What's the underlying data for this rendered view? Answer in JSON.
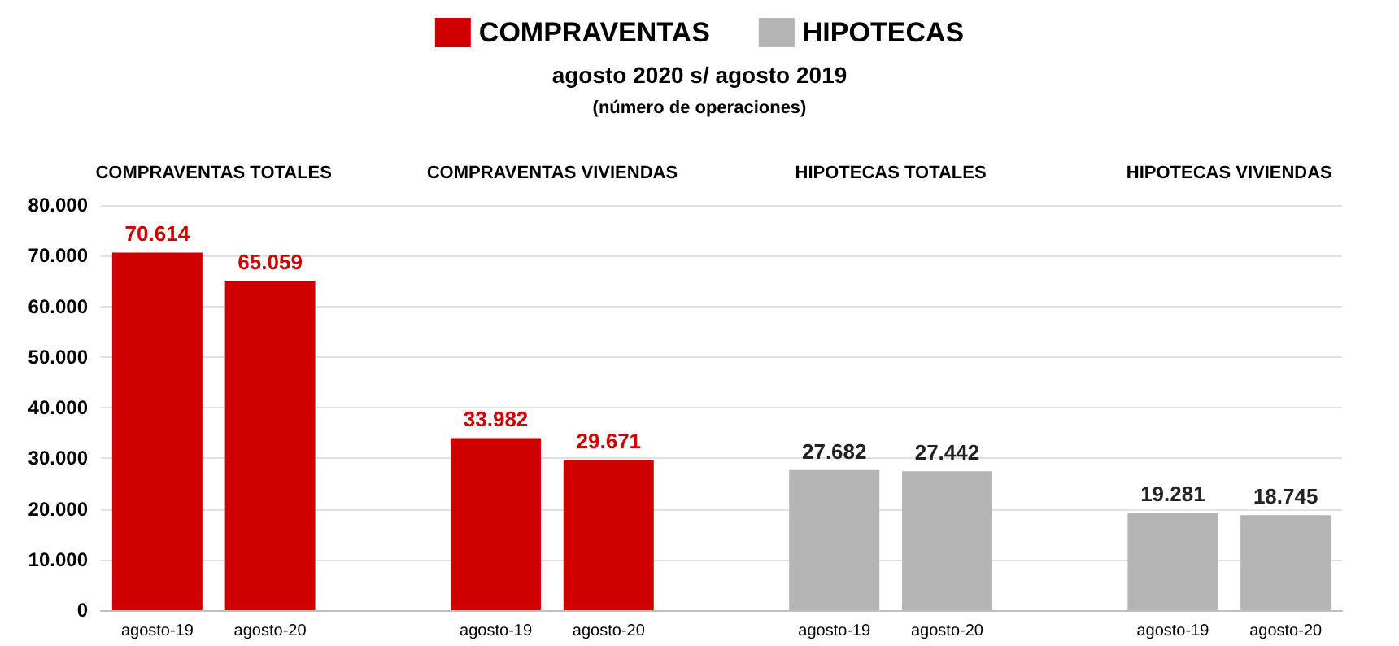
{
  "chart_data": {
    "type": "bar",
    "title": "agosto 2020 s/ agosto 2019",
    "subtitle": "(número de operaciones)",
    "categories": [
      "agosto-19",
      "agosto-20",
      null,
      "agosto-19",
      "agosto-20",
      null,
      "agosto-19",
      "agosto-20",
      null,
      "agosto-19",
      "agosto-20"
    ],
    "series": [
      {
        "name": "COMPRAVENTAS",
        "color": "#d00000",
        "values": [
          70614,
          65059,
          null,
          33982,
          29671,
          null,
          null,
          null,
          null,
          null,
          null
        ],
        "value_labels": [
          "70.614",
          "65.059",
          null,
          "33.982",
          "29.671",
          null,
          null,
          null,
          null,
          null,
          null
        ]
      },
      {
        "name": "HIPOTECAS",
        "color": "#b4b4b4",
        "values": [
          null,
          null,
          null,
          null,
          null,
          null,
          27682,
          27442,
          null,
          19281,
          18745
        ],
        "value_labels": [
          null,
          null,
          null,
          null,
          null,
          null,
          "27.682",
          "27.442",
          null,
          "19.281",
          "18.745"
        ]
      }
    ],
    "annotations": [
      "COMPRAVENTAS TOTALES",
      "COMPRAVENTAS VIVIENDAS",
      "HIPOTECAS TOTALES",
      "HIPOTECAS VIVIENDAS"
    ],
    "ylim": [
      0,
      80000
    ],
    "yticks": [
      {
        "value": 0,
        "label": "0"
      },
      {
        "value": 10000,
        "label": "10.000"
      },
      {
        "value": 20000,
        "label": "20.000"
      },
      {
        "value": 30000,
        "label": "30.000"
      },
      {
        "value": 40000,
        "label": "40.000"
      },
      {
        "value": 50000,
        "label": "50.000"
      },
      {
        "value": 60000,
        "label": "60.000"
      },
      {
        "value": 70000,
        "label": "70.000"
      },
      {
        "value": 80000,
        "label": "80.000"
      }
    ],
    "grid": "y",
    "legend": "top"
  }
}
